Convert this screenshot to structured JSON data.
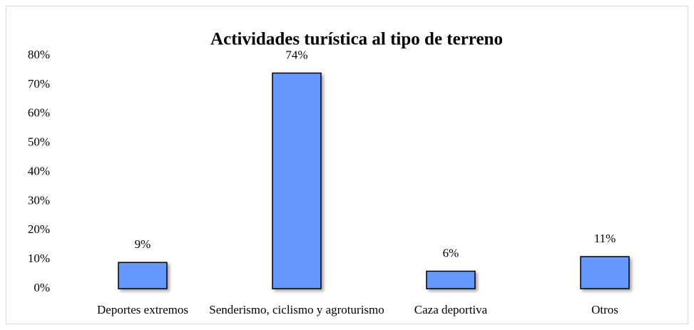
{
  "chart_data": {
    "type": "bar",
    "title": "Actividades turística al tipo de terreno",
    "categories": [
      "Deportes extremos",
      "Senderismo, ciclismo y agroturismo",
      "Caza deportiva",
      "Otros"
    ],
    "values": [
      9,
      74,
      6,
      11
    ],
    "value_labels": [
      "9%",
      "74%",
      "6%",
      "11%"
    ],
    "color": "#6699ff",
    "ylim": [
      0,
      80
    ],
    "yticks": [
      {
        "value": 0,
        "label": "0%"
      },
      {
        "value": 10,
        "label": "10%"
      },
      {
        "value": 20,
        "label": "20%"
      },
      {
        "value": 30,
        "label": "30%"
      },
      {
        "value": 40,
        "label": "40%"
      },
      {
        "value": 50,
        "label": "50%"
      },
      {
        "value": 60,
        "label": "60%"
      },
      {
        "value": 70,
        "label": "70%"
      },
      {
        "value": 80,
        "label": "80%"
      }
    ],
    "grid": false
  }
}
